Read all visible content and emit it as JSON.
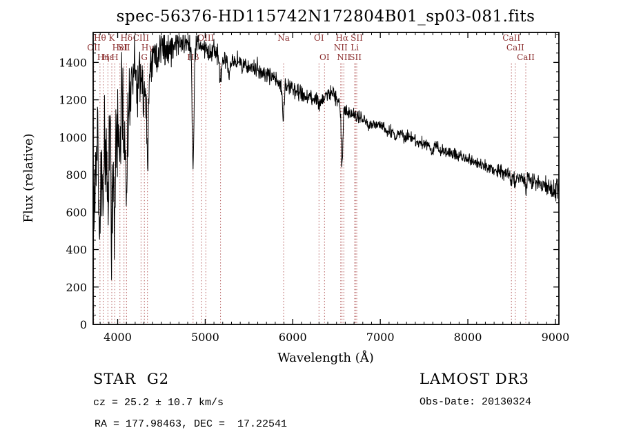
{
  "figure": {
    "annotations": {
      "class_type": "STAR",
      "subclass": "G2",
      "cz": "cz = 25.2 ± 10.7 km/s",
      "ra_dec": "RA = 177.98463, DEC =  17.22541",
      "survey": "LAMOST DR3",
      "obs_date": "Obs-Date: 20130324"
    }
  },
  "chart_data": {
    "type": "line",
    "title": "spec-56376-HD115742N172804B01_sp03-081.fits",
    "xlabel": "Wavelength (Å)",
    "ylabel": "Flux (relative)",
    "series_name": "flux",
    "xlim": [
      3720,
      9040
    ],
    "ylim": [
      0,
      1560
    ],
    "xticks": [
      4000,
      5000,
      6000,
      7000,
      8000,
      9000
    ],
    "yticks": [
      0,
      200,
      400,
      600,
      800,
      1000,
      1200,
      1400
    ],
    "x_minor_step": 100,
    "y_minor_step": 50,
    "grid": false,
    "legend": "none",
    "line_color": "#000000",
    "marker_color": "#b35a5a",
    "label_color": "#8b2f2f",
    "sample_step": 3.5,
    "noise_seed": 56376,
    "continuum_points": [
      [
        3720,
        100
      ],
      [
        3724,
        620
      ],
      [
        3740,
        760
      ],
      [
        3770,
        850
      ],
      [
        3800,
        920
      ],
      [
        3850,
        980
      ],
      [
        3900,
        1020
      ],
      [
        3950,
        1060
      ],
      [
        4000,
        1110
      ],
      [
        4060,
        1160
      ],
      [
        4120,
        1230
      ],
      [
        4180,
        1300
      ],
      [
        4250,
        1350
      ],
      [
        4320,
        1390
      ],
      [
        4400,
        1440
      ],
      [
        4500,
        1470
      ],
      [
        4600,
        1490
      ],
      [
        4700,
        1500
      ],
      [
        4820,
        1500
      ],
      [
        4900,
        1490
      ],
      [
        5000,
        1475
      ],
      [
        5100,
        1455
      ],
      [
        5200,
        1435
      ],
      [
        5300,
        1415
      ],
      [
        5400,
        1395
      ],
      [
        5500,
        1375
      ],
      [
        5600,
        1355
      ],
      [
        5700,
        1335
      ],
      [
        5800,
        1315
      ],
      [
        5900,
        1285
      ],
      [
        6000,
        1255
      ],
      [
        6100,
        1230
      ],
      [
        6200,
        1210
      ],
      [
        6300,
        1195
      ],
      [
        6400,
        1235
      ],
      [
        6460,
        1240
      ],
      [
        6520,
        1185
      ],
      [
        6560,
        1160
      ],
      [
        6620,
        1130
      ],
      [
        6700,
        1112
      ],
      [
        6800,
        1092
      ],
      [
        6900,
        1075
      ],
      [
        7000,
        1060
      ],
      [
        7100,
        1042
      ],
      [
        7200,
        1022
      ],
      [
        7300,
        1002
      ],
      [
        7400,
        986
      ],
      [
        7500,
        970
      ],
      [
        7600,
        952
      ],
      [
        7650,
        958
      ],
      [
        7690,
        928
      ],
      [
        7800,
        915
      ],
      [
        7900,
        900
      ],
      [
        8000,
        884
      ],
      [
        8100,
        864
      ],
      [
        8200,
        846
      ],
      [
        8300,
        830
      ],
      [
        8400,
        815
      ],
      [
        8500,
        800
      ],
      [
        8600,
        786
      ],
      [
        8700,
        770
      ],
      [
        8800,
        754
      ],
      [
        8900,
        736
      ],
      [
        9000,
        716
      ],
      [
        9040,
        706
      ]
    ],
    "absorption_lines": [
      [
        3727,
        90,
        7
      ],
      [
        3798,
        260,
        9
      ],
      [
        3835,
        300,
        9
      ],
      [
        3889,
        320,
        9
      ],
      [
        3933,
        520,
        9
      ],
      [
        3968,
        520,
        9
      ],
      [
        4026,
        120,
        7
      ],
      [
        4072,
        110,
        7
      ],
      [
        4101,
        460,
        11
      ],
      [
        4227,
        140,
        7
      ],
      [
        4267,
        90,
        7
      ],
      [
        4305,
        190,
        13
      ],
      [
        4340,
        480,
        11
      ],
      [
        4383,
        140,
        7
      ],
      [
        4455,
        90,
        7
      ],
      [
        4861,
        660,
        10
      ],
      [
        5175,
        110,
        14
      ],
      [
        5270,
        80,
        10
      ],
      [
        5890,
        165,
        11
      ],
      [
        6300,
        35,
        6
      ],
      [
        6363,
        30,
        6
      ],
      [
        6563,
        300,
        9
      ],
      [
        6870,
        45,
        12
      ],
      [
        7180,
        35,
        12
      ],
      [
        7594,
        45,
        10
      ],
      [
        8498,
        45,
        7
      ],
      [
        8542,
        55,
        7
      ],
      [
        8662,
        50,
        7
      ]
    ],
    "noise_profile": [
      [
        3720,
        185
      ],
      [
        3800,
        170
      ],
      [
        3900,
        160
      ],
      [
        4000,
        130
      ],
      [
        4150,
        100
      ],
      [
        4300,
        75
      ],
      [
        4450,
        55
      ],
      [
        4600,
        42
      ],
      [
        4800,
        34
      ],
      [
        5000,
        30
      ],
      [
        5300,
        26
      ],
      [
        5600,
        24
      ],
      [
        6000,
        23
      ],
      [
        6500,
        21
      ],
      [
        7000,
        17
      ],
      [
        7500,
        16
      ],
      [
        8000,
        16
      ],
      [
        8500,
        18
      ],
      [
        8800,
        24
      ],
      [
        9040,
        30
      ]
    ],
    "spectral_lines": [
      {
        "wavelength": 3727,
        "label": "OII",
        "row": 1
      },
      {
        "wavelength": 3798,
        "label": "Hθ",
        "row": 0
      },
      {
        "wavelength": 3835,
        "label": "Hη",
        "row": 2
      },
      {
        "wavelength": 3889,
        "label": "Hε",
        "row": 2
      },
      {
        "wavelength": 3933,
        "label": "K",
        "row": 0
      },
      {
        "wavelength": 3968,
        "label": "H",
        "row": 2
      },
      {
        "wavelength": 4026,
        "label": "HeI",
        "row": 1
      },
      {
        "wavelength": 4072,
        "label": "SII",
        "row": 1
      },
      {
        "wavelength": 4101,
        "label": "Hδ",
        "row": 0
      },
      {
        "wavelength": 4267,
        "label": "CIII",
        "row": 0
      },
      {
        "wavelength": 4305,
        "label": "G",
        "row": 2
      },
      {
        "wavelength": 4340,
        "label": "Hγ",
        "row": 1
      },
      {
        "wavelength": 4861,
        "label": "Hβ",
        "row": 2
      },
      {
        "wavelength": 4959,
        "label": "",
        "row": 0
      },
      {
        "wavelength": 5007,
        "label": "OIII",
        "row": 0
      },
      {
        "wavelength": 5175,
        "label": "",
        "row": 0
      },
      {
        "wavelength": 5896,
        "label": "Na",
        "row": 0
      },
      {
        "wavelength": 6300,
        "label": "OI",
        "row": 0
      },
      {
        "wavelength": 6363,
        "label": "OI",
        "row": 2
      },
      {
        "wavelength": 6548,
        "label": "NII",
        "row": 1
      },
      {
        "wavelength": 6563,
        "label": "Hα",
        "row": 0
      },
      {
        "wavelength": 6583,
        "label": "NII",
        "row": 2
      },
      {
        "wavelength": 6708,
        "label": "Li",
        "row": 1
      },
      {
        "wavelength": 6716,
        "label": "SII",
        "row": 2
      },
      {
        "wavelength": 6731,
        "label": "SII",
        "row": 0
      },
      {
        "wavelength": 8498,
        "label": "CaII",
        "row": 0
      },
      {
        "wavelength": 8542,
        "label": "CaII",
        "row": 1
      },
      {
        "wavelength": 8662,
        "label": "CaII",
        "row": 2
      }
    ]
  }
}
